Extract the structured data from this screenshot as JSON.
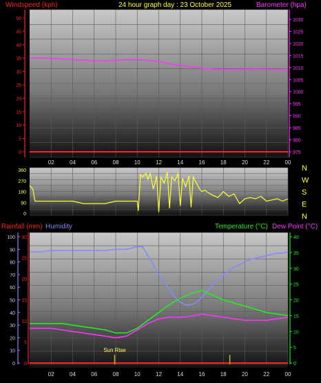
{
  "header": {
    "left_label": "Windspeed (kph)",
    "title": "24 hour graph day : 23 October 2025",
    "right_label": "Barometer (hpa)"
  },
  "hour_ticks": [
    "02",
    "04",
    "06",
    "08",
    "10",
    "12",
    "14",
    "16",
    "18",
    "20",
    "22",
    "00"
  ],
  "colors": {
    "wind": "#ff2222",
    "baro": "#ff33ff",
    "dir": "#ffff33",
    "hum": "#8888ff",
    "temp": "#22ee22",
    "dew": "#ff33ff",
    "rain": "#ff2222",
    "sun": "#ccaa33"
  },
  "chart_data": [
    {
      "type": "line",
      "name": "wind-baro",
      "x_unit": "hour",
      "xlim": [
        0,
        24
      ],
      "wind": {
        "label": "Windspeed (kph)",
        "ylim": [
          0,
          50
        ],
        "ticks": [
          0,
          5,
          10,
          15,
          20,
          25,
          30,
          35,
          40,
          45,
          50
        ],
        "x": [
          0,
          24
        ],
        "y": [
          0,
          0
        ]
      },
      "baro": {
        "label": "Barometer (hpa)",
        "ylim": [
          975,
          1030
        ],
        "ticks": [
          975,
          980,
          985,
          990,
          995,
          1000,
          1005,
          1010,
          1015,
          1020,
          1025,
          1030
        ],
        "x": [
          0,
          1,
          2,
          3,
          4,
          5,
          6,
          7,
          8,
          9,
          10,
          11,
          12,
          13,
          14,
          15,
          16,
          17,
          18,
          19,
          20,
          21,
          22,
          23,
          24
        ],
        "y": [
          1014,
          1014,
          1013.8,
          1013.5,
          1013.2,
          1013,
          1012.8,
          1012.8,
          1013,
          1013.2,
          1013.2,
          1013,
          1012.5,
          1011.5,
          1010.8,
          1010.3,
          1009.7,
          1009.3,
          1009,
          1009,
          1009.2,
          1009.3,
          1009.2,
          1009,
          1008.8
        ]
      }
    },
    {
      "type": "line",
      "name": "wind-direction",
      "x_unit": "hour",
      "xlim": [
        0,
        24
      ],
      "ylim": [
        0,
        360
      ],
      "ticks": [
        0,
        90,
        180,
        270,
        360
      ],
      "compass": [
        "N",
        "W",
        "S",
        "E",
        "N"
      ],
      "x": [
        0,
        0.3,
        0.5,
        1,
        2,
        3,
        4,
        5,
        6,
        7,
        8,
        9,
        10,
        10.1,
        10.3,
        10.5,
        10.8,
        11,
        11.2,
        11.5,
        11.8,
        12,
        12.2,
        12.5,
        12.8,
        13,
        13.2,
        13.5,
        13.8,
        14,
        14.2,
        14.5,
        14.8,
        15,
        15.2,
        15.5,
        15.8,
        16,
        16.3,
        16.6,
        17,
        17.5,
        18,
        18.5,
        19,
        19.5,
        20,
        20.5,
        21,
        21.5,
        22,
        22.5,
        23,
        23.5,
        24
      ],
      "y": [
        230,
        200,
        100,
        100,
        100,
        100,
        100,
        80,
        80,
        80,
        100,
        100,
        100,
        20,
        320,
        300,
        330,
        280,
        330,
        200,
        310,
        10,
        300,
        250,
        340,
        40,
        300,
        270,
        330,
        60,
        290,
        220,
        310,
        50,
        300,
        250,
        200,
        180,
        190,
        170,
        150,
        130,
        180,
        140,
        160,
        80,
        120,
        130,
        120,
        140,
        100,
        110,
        120,
        100,
        120
      ]
    },
    {
      "type": "line",
      "name": "rain-hum-temp-dew",
      "x_unit": "hour",
      "xlim": [
        0,
        24
      ],
      "rainfall": {
        "label": "Rainfall (mm)",
        "ylim": [
          0,
          30
        ],
        "ticks": [
          0,
          5,
          10,
          15,
          20,
          25,
          30
        ],
        "x": [
          0,
          24
        ],
        "y": [
          0,
          0
        ]
      },
      "humidity": {
        "label": "Humidity",
        "ylim": [
          0,
          100
        ],
        "ticks": [
          0,
          10,
          20,
          30,
          40,
          50,
          60,
          70,
          80,
          90,
          100
        ],
        "x": [
          0,
          1,
          2,
          3,
          4,
          5,
          6,
          7,
          8,
          9,
          10,
          10.5,
          11,
          11.5,
          12,
          12.5,
          13,
          13.5,
          14,
          14.5,
          15,
          15.5,
          16,
          16.5,
          17,
          17.5,
          18,
          18.5,
          19,
          19.5,
          20,
          20.5,
          21,
          21.5,
          22,
          22.5,
          23,
          23.5,
          24
        ],
        "y": [
          88,
          88,
          89,
          89,
          89,
          89,
          89,
          89,
          90,
          90,
          92,
          92,
          85,
          78,
          70,
          65,
          58,
          52,
          48,
          46,
          46,
          48,
          52,
          57,
          62,
          66,
          70,
          73,
          76,
          78,
          80,
          82,
          83,
          84,
          85,
          86,
          87,
          87,
          88
        ]
      },
      "temperature": {
        "label": "Temperature (°C)",
        "ylim": [
          0,
          40
        ],
        "ticks": [
          0,
          5,
          10,
          15,
          20,
          25,
          30,
          35,
          40
        ],
        "x": [
          0,
          1,
          2,
          3,
          4,
          5,
          6,
          7,
          8,
          9,
          10,
          11,
          12,
          13,
          14,
          15,
          16,
          17,
          18,
          19,
          20,
          21,
          22,
          23,
          24
        ],
        "y": [
          12.5,
          12.5,
          12.5,
          12.5,
          12,
          11.5,
          11,
          10.5,
          9.5,
          9.5,
          11,
          13.5,
          16,
          18.5,
          20.5,
          22,
          23,
          21.5,
          20,
          19,
          18,
          17,
          16,
          15.5,
          15
        ]
      },
      "dew_point": {
        "label": "Dew Point (°C)",
        "x": [
          0,
          1,
          2,
          3,
          4,
          5,
          6,
          7,
          8,
          9,
          10,
          11,
          12,
          13,
          14,
          15,
          16,
          17,
          18,
          19,
          20,
          21,
          22,
          23,
          24
        ],
        "y": [
          11,
          11,
          11,
          10.5,
          10,
          9.5,
          9,
          8.5,
          8,
          8.5,
          10.5,
          12.5,
          14,
          14.5,
          14.5,
          14.8,
          15.5,
          15,
          14.5,
          14,
          13.5,
          13.5,
          13.5,
          14,
          14.5
        ]
      },
      "annotation": {
        "label": "Sun Rise",
        "x": 7.9
      },
      "sunset_x": 18.6
    }
  ],
  "rain_header": {
    "rain": "Rainfall (mm)",
    "hum": "Humidity",
    "temp": "Temperature (°C)",
    "dew": "Dew Point (°C)"
  }
}
